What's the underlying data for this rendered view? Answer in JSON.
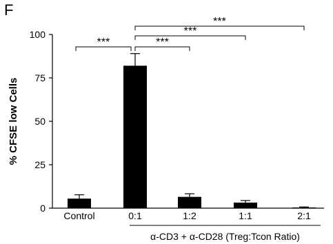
{
  "panel_label": "F",
  "chart_data": {
    "type": "bar",
    "categories": [
      "Control",
      "0:1",
      "1:2",
      "1:1",
      "2:1"
    ],
    "values": [
      5.5,
      82,
      6.5,
      3.2,
      0.4
    ],
    "errors": [
      2.2,
      7,
      1.8,
      1.2,
      0.3
    ],
    "ylabel": "% CFSE low Cells",
    "xlabel": "",
    "ylim": [
      0,
      100
    ],
    "yticks": [
      0,
      25,
      50,
      75,
      100
    ],
    "group_label": "α-CD3 + α-CD28 (Treg:Tcon Ratio)",
    "group_members": [
      "0:1",
      "1:2",
      "1:1",
      "2:1"
    ],
    "bar_color": "#000000",
    "grid": false,
    "significance": [
      {
        "from": "Control",
        "to": "0:1",
        "label": "***"
      },
      {
        "from": "0:1",
        "to": "1:2",
        "label": "***"
      },
      {
        "from": "0:1",
        "to": "1:1",
        "label": "***"
      },
      {
        "from": "0:1",
        "to": "2:1",
        "label": "***"
      }
    ]
  }
}
